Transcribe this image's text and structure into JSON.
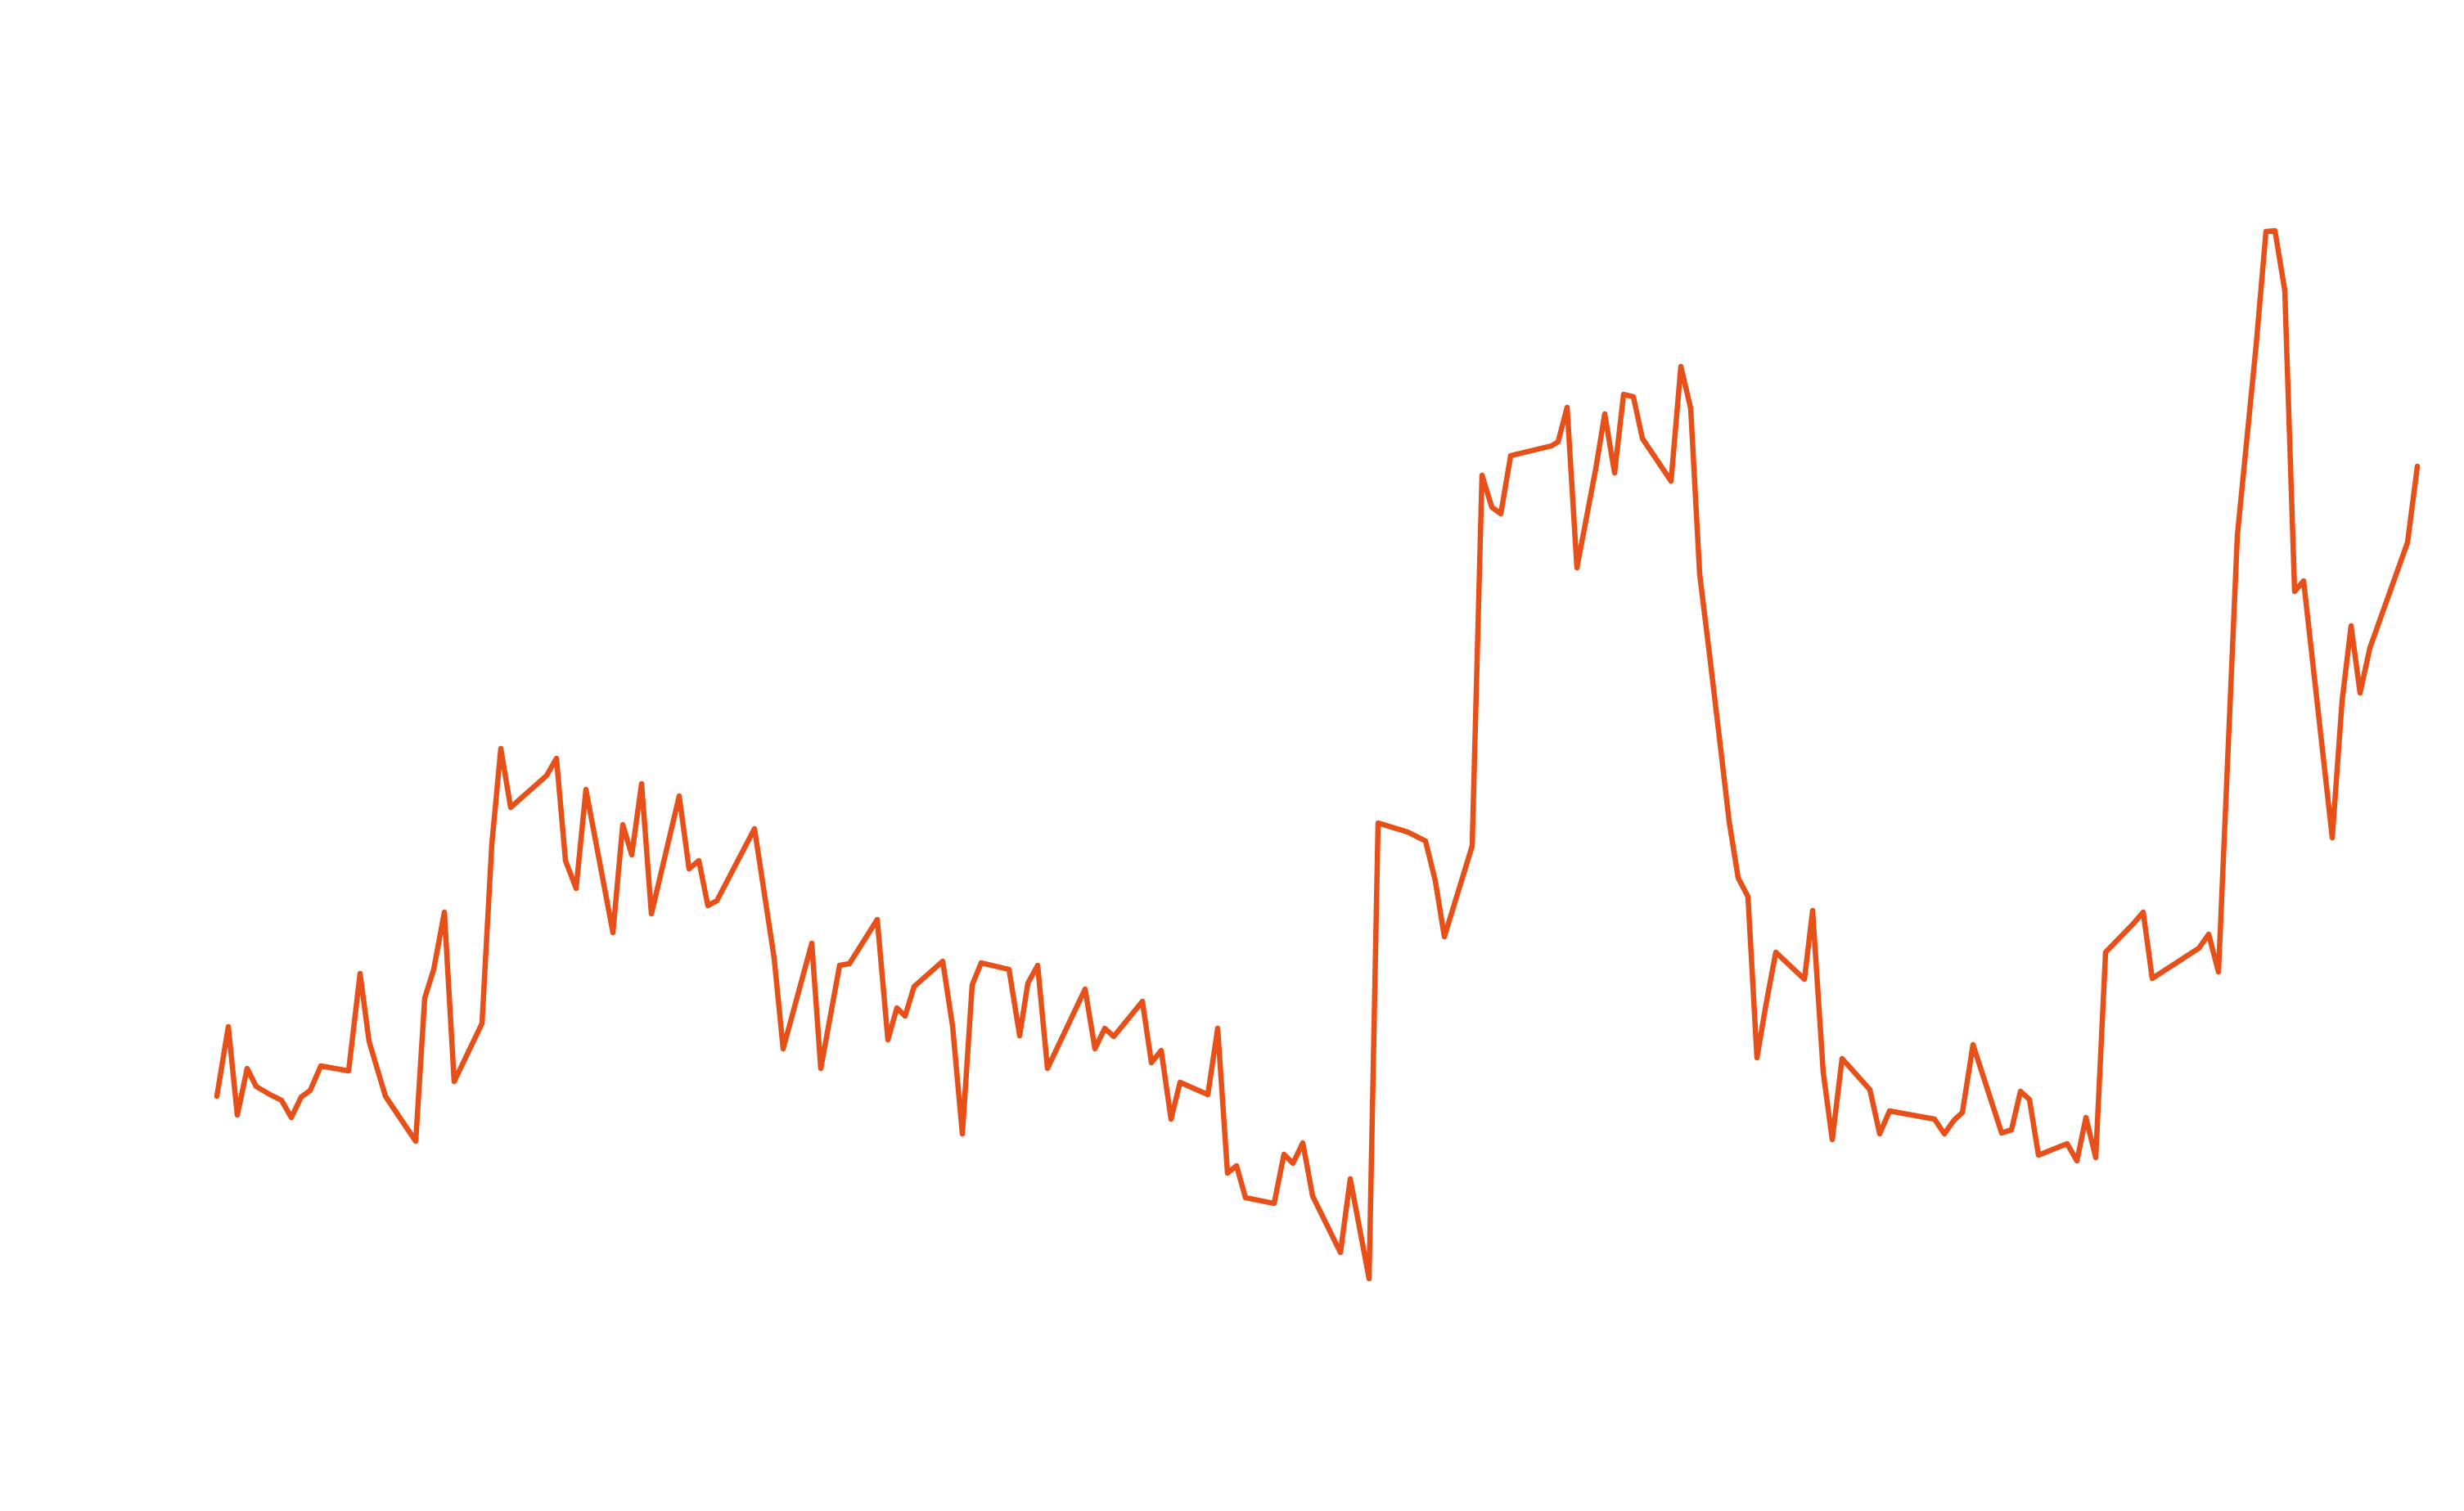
{
  "chart_data": {
    "type": "line",
    "title": "",
    "xlabel": "",
    "ylabel": "",
    "grid": false,
    "axes_visible": false,
    "ylim": [
      0,
      1847
    ],
    "series": [
      {
        "color": "#e8501a",
        "points": [
          [
            265,
            1340
          ],
          [
            279,
            1255
          ],
          [
            290,
            1363
          ],
          [
            302,
            1306
          ],
          [
            313,
            1328
          ],
          [
            330,
            1338
          ],
          [
            344,
            1345
          ],
          [
            356,
            1366
          ],
          [
            368,
            1341
          ],
          [
            379,
            1333
          ],
          [
            392,
            1303
          ],
          [
            426,
            1309
          ],
          [
            440,
            1190
          ],
          [
            451,
            1273
          ],
          [
            471,
            1340
          ],
          [
            508,
            1395
          ],
          [
            519,
            1220
          ],
          [
            530,
            1185
          ],
          [
            543,
            1115
          ],
          [
            555,
            1322
          ],
          [
            589,
            1251
          ],
          [
            601,
            1032
          ],
          [
            612,
            915
          ],
          [
            624,
            987
          ],
          [
            668,
            948
          ],
          [
            680,
            927
          ],
          [
            691,
            1052
          ],
          [
            704,
            1086
          ],
          [
            716,
            965
          ],
          [
            749,
            1140
          ],
          [
            761,
            1008
          ],
          [
            772,
            1045
          ],
          [
            784,
            958
          ],
          [
            796,
            1117
          ],
          [
            830,
            973
          ],
          [
            842,
            1062
          ],
          [
            854,
            1052
          ],
          [
            865,
            1107
          ],
          [
            876,
            1101
          ],
          [
            922,
            1013
          ],
          [
            946,
            1171
          ],
          [
            957,
            1282
          ],
          [
            992,
            1153
          ],
          [
            1003,
            1306
          ],
          [
            1026,
            1180
          ],
          [
            1038,
            1178
          ],
          [
            1072,
            1124
          ],
          [
            1085,
            1271
          ],
          [
            1096,
            1232
          ],
          [
            1106,
            1242
          ],
          [
            1117,
            1206
          ],
          [
            1152,
            1175
          ],
          [
            1164,
            1254
          ],
          [
            1176,
            1386
          ],
          [
            1188,
            1204
          ],
          [
            1199,
            1177
          ],
          [
            1233,
            1185
          ],
          [
            1246,
            1266
          ],
          [
            1256,
            1202
          ],
          [
            1268,
            1180
          ],
          [
            1280,
            1306
          ],
          [
            1326,
            1209
          ],
          [
            1338,
            1282
          ],
          [
            1350,
            1257
          ],
          [
            1361,
            1267
          ],
          [
            1396,
            1224
          ],
          [
            1407,
            1299
          ],
          [
            1419,
            1284
          ],
          [
            1431,
            1368
          ],
          [
            1442,
            1323
          ],
          [
            1476,
            1338
          ],
          [
            1488,
            1257
          ],
          [
            1500,
            1434
          ],
          [
            1511,
            1425
          ],
          [
            1522,
            1464
          ],
          [
            1557,
            1471
          ],
          [
            1569,
            1411
          ],
          [
            1580,
            1422
          ],
          [
            1592,
            1397
          ],
          [
            1604,
            1462
          ],
          [
            1638,
            1531
          ],
          [
            1650,
            1441
          ],
          [
            1673,
            1563
          ],
          [
            1684,
            1006
          ],
          [
            1720,
            1017
          ],
          [
            1742,
            1028
          ],
          [
            1754,
            1077
          ],
          [
            1765,
            1145
          ],
          [
            1799,
            1034
          ],
          [
            1811,
            581
          ],
          [
            1823,
            620
          ],
          [
            1834,
            628
          ],
          [
            1846,
            557
          ],
          [
            1896,
            545
          ],
          [
            1904,
            540
          ],
          [
            1915,
            498
          ],
          [
            1927,
            694
          ],
          [
            1950,
            573
          ],
          [
            1961,
            506
          ],
          [
            1973,
            578
          ],
          [
            1984,
            482
          ],
          [
            1996,
            485
          ],
          [
            2007,
            536
          ],
          [
            2042,
            588
          ],
          [
            2054,
            448
          ],
          [
            2066,
            499
          ],
          [
            2077,
            702
          ],
          [
            2089,
            800
          ],
          [
            2101,
            901
          ],
          [
            2113,
            1004
          ],
          [
            2124,
            1073
          ],
          [
            2136,
            1096
          ],
          [
            2147,
            1293
          ],
          [
            2158,
            1228
          ],
          [
            2170,
            1164
          ],
          [
            2205,
            1197
          ],
          [
            2215,
            1113
          ],
          [
            2228,
            1311
          ],
          [
            2239,
            1393
          ],
          [
            2251,
            1294
          ],
          [
            2285,
            1332
          ],
          [
            2297,
            1386
          ],
          [
            2309,
            1358
          ],
          [
            2364,
            1368
          ],
          [
            2376,
            1386
          ],
          [
            2388,
            1369
          ],
          [
            2398,
            1360
          ],
          [
            2411,
            1277
          ],
          [
            2446,
            1385
          ],
          [
            2458,
            1381
          ],
          [
            2469,
            1334
          ],
          [
            2480,
            1344
          ],
          [
            2491,
            1412
          ],
          [
            2526,
            1398
          ],
          [
            2538,
            1419
          ],
          [
            2549,
            1366
          ],
          [
            2561,
            1415
          ],
          [
            2573,
            1164
          ],
          [
            2607,
            1129
          ],
          [
            2619,
            1115
          ],
          [
            2630,
            1196
          ],
          [
            2687,
            1159
          ],
          [
            2699,
            1142
          ],
          [
            2711,
            1188
          ],
          [
            2734,
            655
          ],
          [
            2757,
            422
          ],
          [
            2769,
            283
          ],
          [
            2780,
            282
          ],
          [
            2792,
            355
          ],
          [
            2804,
            723
          ],
          [
            2815,
            710
          ],
          [
            2850,
            1024
          ],
          [
            2862,
            857
          ],
          [
            2873,
            765
          ],
          [
            2884,
            847
          ],
          [
            2896,
            792
          ],
          [
            2942,
            663
          ],
          [
            2954,
            570
          ]
        ]
      }
    ]
  }
}
